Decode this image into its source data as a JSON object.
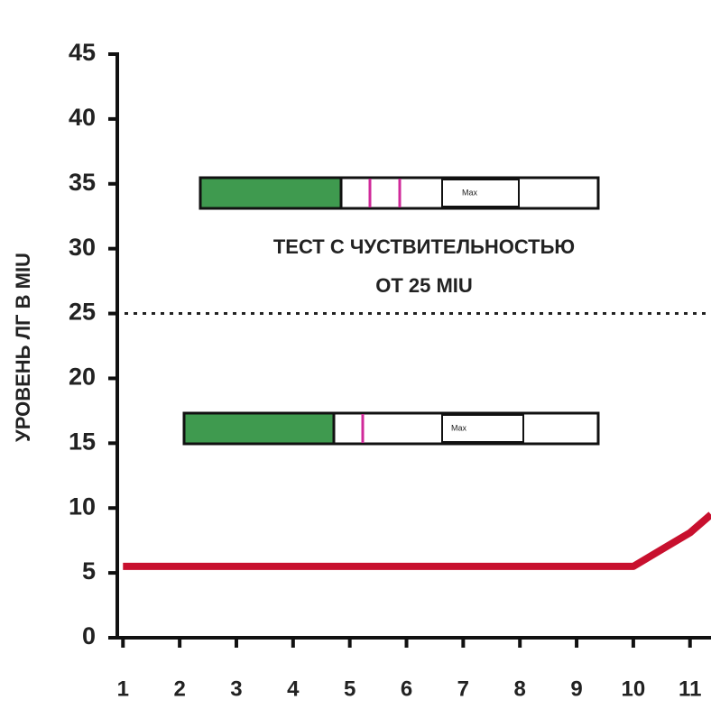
{
  "chart_data": {
    "type": "line",
    "y_label": "УРОВЕНЬ ЛГ В MIU",
    "annotation": [
      "ТЕСТ С ЧУСТВИТЕЛЬНОСТЬЮ",
      "ОТ 25 MIU"
    ],
    "reference_line": 25,
    "strip_labels": [
      "Max",
      "Max"
    ],
    "x": [
      1,
      2,
      3,
      4,
      5,
      6,
      7,
      8,
      9,
      10,
      10.5,
      11,
      11.37
    ],
    "values": [
      5.5,
      5.5,
      5.5,
      5.5,
      5.5,
      5.5,
      5.5,
      5.5,
      5.5,
      5.5,
      6.8,
      8.1,
      9.5
    ],
    "color": "#c8102e",
    "xlim": [
      0.9,
      11.37
    ],
    "xticks": [
      1,
      2,
      3,
      4,
      5,
      6,
      7,
      8,
      9,
      10,
      11
    ],
    "ylim": [
      0,
      45
    ],
    "yticks": [
      0,
      5,
      10,
      15,
      20,
      25,
      30,
      35,
      40,
      45
    ]
  }
}
